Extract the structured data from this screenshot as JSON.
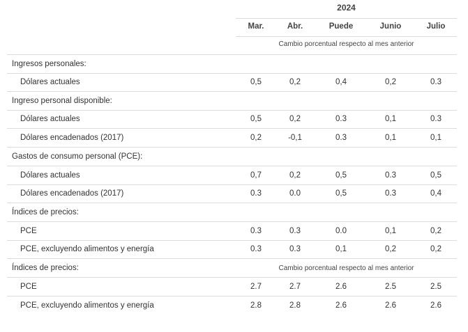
{
  "header": {
    "year": "2024",
    "columns": [
      "Mar.",
      "Abr.",
      "Puede",
      "Junio",
      "Julio"
    ],
    "subtitle": "Cambio porcentual respecto al mes anterior"
  },
  "rows": [
    {
      "type": "section",
      "label": "Ingresos personales:"
    },
    {
      "type": "data",
      "label": "Dólares actuales",
      "values": [
        "0,5",
        "0,2",
        "0,4",
        "0,2",
        "0.3"
      ]
    },
    {
      "type": "section",
      "label": "Ingreso personal disponible:"
    },
    {
      "type": "data",
      "label": "Dólares actuales",
      "values": [
        "0,5",
        "0,2",
        "0.3",
        "0,1",
        "0.3"
      ]
    },
    {
      "type": "data",
      "label": "Dólares encadenados (2017)",
      "values": [
        "0,2",
        "-0,1",
        "0.3",
        "0,1",
        "0,1"
      ]
    },
    {
      "type": "section",
      "label": "Gastos de consumo personal (PCE):"
    },
    {
      "type": "data",
      "label": "Dólares actuales",
      "values": [
        "0,7",
        "0,2",
        "0,5",
        "0.3",
        "0,5"
      ]
    },
    {
      "type": "data",
      "label": "Dólares encadenados (2017)",
      "values": [
        "0.3",
        "0.0",
        "0,5",
        "0.3",
        "0,4"
      ]
    },
    {
      "type": "section",
      "label": "Índices de precios:"
    },
    {
      "type": "data",
      "label": "PCE",
      "values": [
        "0.3",
        "0.3",
        "0.0",
        "0,1",
        "0,2"
      ]
    },
    {
      "type": "data",
      "label": "PCE, excluyendo alimentos y energía",
      "values": [
        "0.3",
        "0.3",
        "0,1",
        "0,2",
        "0,2"
      ]
    },
    {
      "type": "section",
      "label": "Índices de precios:",
      "note": "Cambio porcentual respecto al mes anterior"
    },
    {
      "type": "data",
      "label": "PCE",
      "values": [
        "2.7",
        "2.7",
        "2.6",
        "2.5",
        "2.5"
      ]
    },
    {
      "type": "data",
      "label": "PCE, excluyendo alimentos y energía",
      "values": [
        "2.8",
        "2.8",
        "2.6",
        "2.6",
        "2.6"
      ]
    }
  ]
}
